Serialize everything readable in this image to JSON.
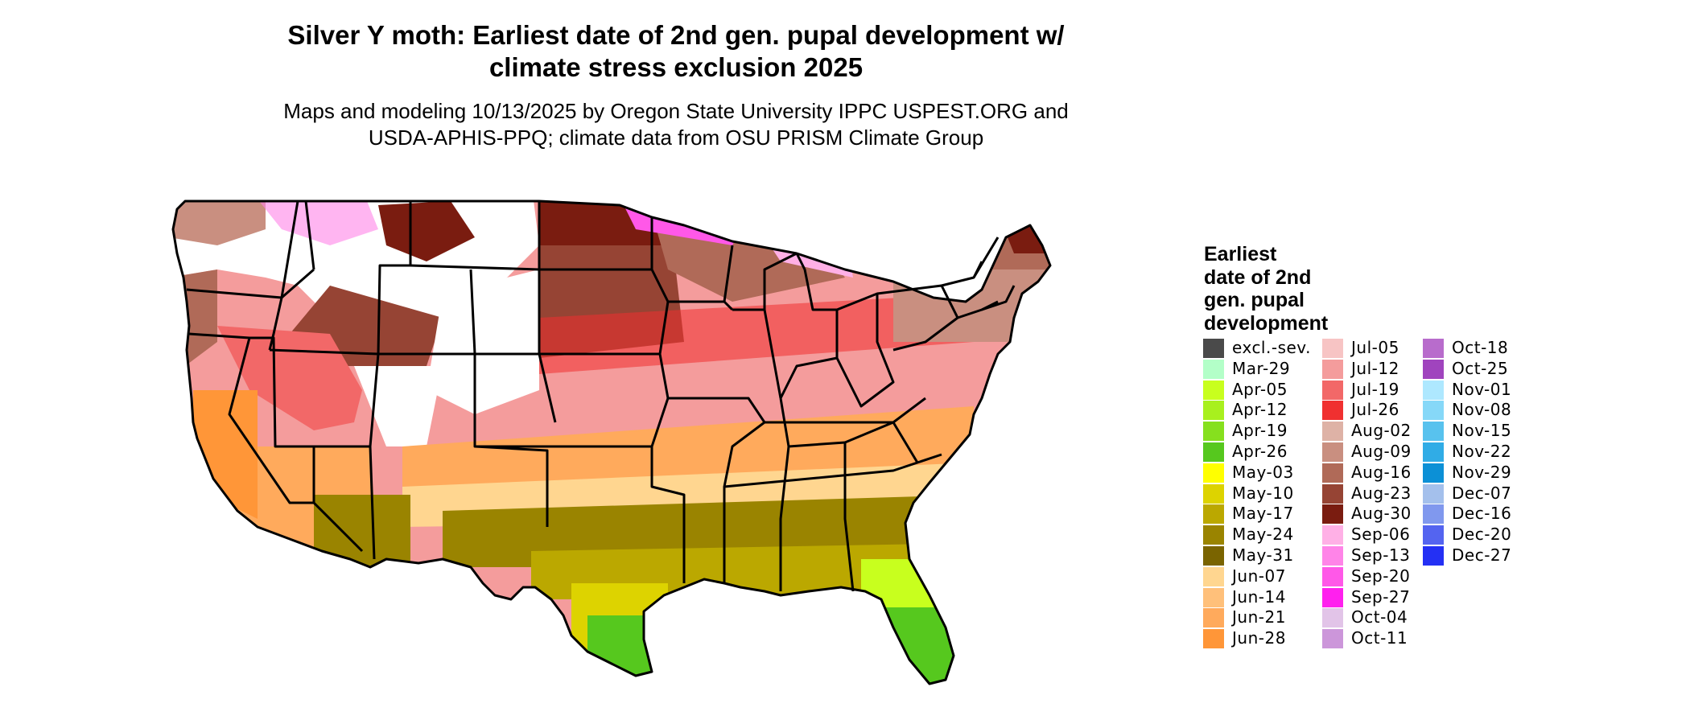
{
  "title_lines": [
    "Silver Y moth: Earliest date of 2nd gen. pupal development w/",
    "climate stress exclusion 2025"
  ],
  "subtitle_lines": [
    "Maps and modeling 10/13/2025 by Oregon State University IPPC USPEST.ORG and",
    "USDA-APHIS-PPQ; climate data from OSU PRISM Climate Group"
  ],
  "legend": {
    "title_lines": [
      "Earliest",
      "date of 2nd",
      "gen. pupal",
      "development"
    ],
    "columns": [
      [
        {
          "label": "excl.-sev.",
          "color": "#4a4a4a"
        },
        {
          "label": "Mar-29",
          "color": "#b3ffc8"
        },
        {
          "label": "Apr-05",
          "color": "#c8ff1e"
        },
        {
          "label": "Apr-12",
          "color": "#a8f01e"
        },
        {
          "label": "Apr-19",
          "color": "#86e01e"
        },
        {
          "label": "Apr-26",
          "color": "#56c81e"
        },
        {
          "label": "May-03",
          "color": "#ffff00"
        },
        {
          "label": "May-10",
          "color": "#ddd300"
        },
        {
          "label": "May-17",
          "color": "#bba800"
        },
        {
          "label": "May-24",
          "color": "#9a8400"
        },
        {
          "label": "May-31",
          "color": "#7a6400"
        },
        {
          "label": "Jun-07",
          "color": "#ffd690"
        },
        {
          "label": "Jun-14",
          "color": "#ffc07a"
        },
        {
          "label": "Jun-21",
          "color": "#ffaa5c"
        },
        {
          "label": "Jun-28",
          "color": "#ff9638"
        }
      ],
      [
        {
          "label": "Jul-05",
          "color": "#f7c4c4"
        },
        {
          "label": "Jul-12",
          "color": "#f49c9c"
        },
        {
          "label": "Jul-19",
          "color": "#f26868"
        },
        {
          "label": "Jul-26",
          "color": "#f03030"
        },
        {
          "label": "Aug-02",
          "color": "#deb2a6"
        },
        {
          "label": "Aug-09",
          "color": "#c98f80"
        },
        {
          "label": "Aug-16",
          "color": "#b06a58"
        },
        {
          "label": "Aug-23",
          "color": "#964434"
        },
        {
          "label": "Aug-30",
          "color": "#7a1c10"
        },
        {
          "label": "Sep-06",
          "color": "#ffb0e6"
        },
        {
          "label": "Sep-13",
          "color": "#ff84e8"
        },
        {
          "label": "Sep-20",
          "color": "#ff58e8"
        },
        {
          "label": "Sep-27",
          "color": "#ff20ee"
        },
        {
          "label": "Oct-04",
          "color": "#e2c4e8"
        },
        {
          "label": "Oct-11",
          "color": "#cc96da"
        }
      ],
      [
        {
          "label": "Oct-18",
          "color": "#b86ccc"
        },
        {
          "label": "Oct-25",
          "color": "#a044be"
        },
        {
          "label": "Nov-01",
          "color": "#aee8ff"
        },
        {
          "label": "Nov-08",
          "color": "#86d8f8"
        },
        {
          "label": "Nov-15",
          "color": "#58c2ee"
        },
        {
          "label": "Nov-22",
          "color": "#30ace6"
        },
        {
          "label": "Nov-29",
          "color": "#0c90d6"
        },
        {
          "label": "Dec-07",
          "color": "#a4c0ec"
        },
        {
          "label": "Dec-16",
          "color": "#8098ee"
        },
        {
          "label": "Dec-20",
          "color": "#5464f0"
        },
        {
          "label": "Dec-27",
          "color": "#2430f4"
        }
      ]
    ]
  }
}
